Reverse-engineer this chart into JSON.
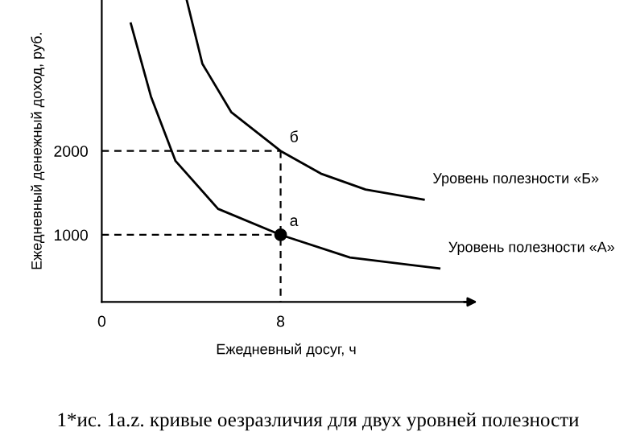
{
  "chart_data": {
    "type": "line",
    "xlabel": "Ежедневный досуг, ч",
    "ylabel": "Ежедневный денежный доход, руб.",
    "xlim": [
      0,
      16.5
    ],
    "ylim": [
      200,
      3800
    ],
    "xticks": [
      0,
      8
    ],
    "yticks": [
      1000,
      2000
    ],
    "grid": false,
    "legend": false,
    "series": [
      {
        "name": "Уровень полезности «А»",
        "color": "#000000",
        "x": [
          1.3,
          2.2,
          3.3,
          5.2,
          8,
          11.1,
          15.1
        ],
        "values": [
          3520,
          2650,
          1880,
          1310,
          1000,
          730,
          600
        ]
      },
      {
        "name": "Уровень полезности «Б»",
        "color": "#000000",
        "x": [
          3.8,
          4.5,
          5.8,
          8,
          9.8,
          11.8,
          14.4
        ],
        "values": [
          3800,
          3040,
          2460,
          2000,
          1730,
          1540,
          1420
        ]
      },
      {
        "color": "#000000",
        "line_style": "dashed",
        "x": [
          0,
          8
        ],
        "values": [
          2000,
          2000
        ]
      },
      {
        "color": "#000000",
        "line_style": "dashed",
        "x": [
          8,
          8
        ],
        "values": [
          2000,
          200
        ]
      },
      {
        "color": "#000000",
        "line_style": "dashed",
        "x": [
          0,
          8
        ],
        "values": [
          1000,
          1000
        ]
      },
      {
        "type": "scatter",
        "marker": "circle",
        "color": "#000000",
        "x": [
          8
        ],
        "values": [
          1000
        ]
      }
    ],
    "annotations": [
      {
        "text": "б",
        "x": 8,
        "y": 2000
      },
      {
        "text": "а",
        "x": 8,
        "y": 1000
      },
      "1*ис. 1a.z. кривые оезразличия для двух уровней полезности"
    ]
  }
}
